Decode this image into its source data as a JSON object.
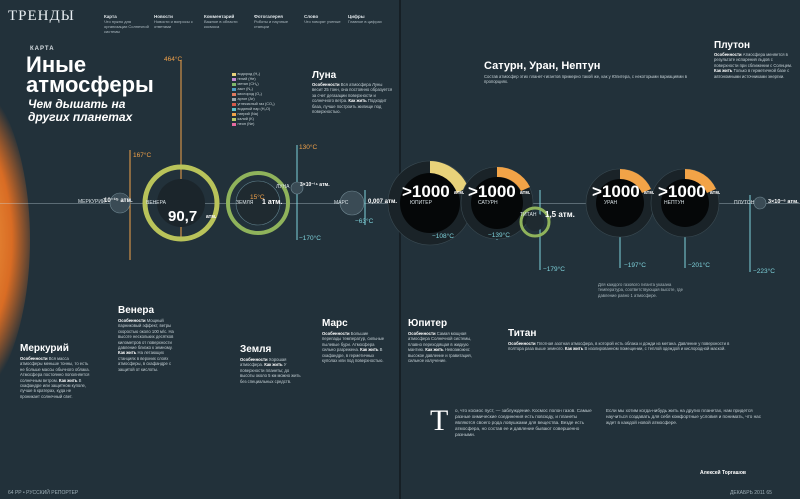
{
  "header": {
    "section": "ТРЕНДЫ",
    "columns": [
      {
        "title": "Карта",
        "text": "Что нужно для организации Солнечной системы"
      },
      {
        "title": "Новости",
        "text": "Новости и вопросы с ответами"
      },
      {
        "title": "Комментарий",
        "text": "Важное в области космоса"
      },
      {
        "title": "Фотогалерея",
        "text": "Роботы и научные станции"
      },
      {
        "title": "Слово",
        "text": "Что говорят ученые"
      },
      {
        "title": "Цифры",
        "text": "Главное в цифрах"
      }
    ]
  },
  "article": {
    "kicker": "КАРТА",
    "title": "Иные атмосферы",
    "subtitle": "Чем дышать на других планетах"
  },
  "planets": [
    {
      "name": "МЕРКУРИЙ",
      "pressure": "10⁻¹⁵ атм.",
      "temp_high": "167°C"
    },
    {
      "name": "ВЕНЕРА",
      "pressure": "90,7",
      "unit": "атм.",
      "temp_high": "464°C"
    },
    {
      "name": "ЗЕМЛЯ",
      "pressure": "1 атм.",
      "temp_mid": "15°C"
    },
    {
      "name": "ЛУНА",
      "pressure": "3×10⁻¹⁵ атм.",
      "temp_high": "130°C",
      "temp_low": "−170°C"
    },
    {
      "name": "МАРС",
      "pressure": "0,007 атм.",
      "temp_low": "−63°C"
    },
    {
      "name": "ЮПИТЕР",
      "pressure": ">1000",
      "unit": "атм.",
      "temp_low": "−108°C"
    },
    {
      "name": "САТУРН",
      "pressure": ">1000",
      "unit": "атм.",
      "temp_low": "−139°C"
    },
    {
      "name": "ТИТАН",
      "pressure": "1,5 атм.",
      "temp_low": "−179°C"
    },
    {
      "name": "УРАН",
      "pressure": ">1000",
      "unit": "атм.",
      "temp_low": "−197°C"
    },
    {
      "name": "НЕПТУН",
      "pressure": ">1000",
      "unit": "атм.",
      "temp_low": "−201°C"
    },
    {
      "name": "ПЛУТОН",
      "pressure": "3×10⁻⁶ атм.",
      "temp_low": "−223°C"
    }
  ],
  "mercury": {
    "name": "Меркурий",
    "desc_label": "Особенности",
    "desc": "Вся масса атмосферы меньше тонны, то есть не больше массы обычного облака. Атмосфера постоянно пополняется солнечным ветром.",
    "how_label": "Как жить",
    "how": "В скафандре или защитном куполе, лучше в кратерах, куда не проникает солнечный свет."
  },
  "venus": {
    "name": "Венера",
    "desc_label": "Особенности",
    "desc": "Мощный парниковый эффект, ветры скоростью около 100 м/с. На высоте нескольких десятков километров от поверхности давление близко к земному.",
    "how_label": "Как жить",
    "how": "На летающих станциях в верхних слоях атмосферы, в скафандре с защитой от кислоты."
  },
  "earth": {
    "name": "Земля",
    "desc_label": "Особенности",
    "desc": "Хорошая атмосфера.",
    "how_label": "Как жить",
    "how": "У поверхности планеты; до высоты около 5 км можно жить без специальных средств."
  },
  "moon": {
    "name": "Луна",
    "desc_label": "Особенности",
    "desc": "Вся атмосфера Луны весит 25 тонн, она постоянно образуется за счет дегазации поверхности и солнечного ветра.",
    "how_label": "Как жить",
    "how": "Подходит база, лучше построить жилище под поверхностью."
  },
  "mars": {
    "name": "Марс",
    "desc_label": "Особенности",
    "desc": "Большие перепады температур, сильные пылевые бури. Атмосфера сильно разрежена.",
    "how_label": "Как жить",
    "how": "В скафандре, в герметичных куполах или под поверхностью."
  },
  "jupiter": {
    "name": "Юпитер",
    "desc_label": "Особенности",
    "desc": "Самая мощная атмосфера Солнечной системы, плавно переходящая в жидкую мантию.",
    "how_label": "Как жить",
    "how": "Невозможно: высокое давление и гравитация, сильное излучение."
  },
  "saturn_group": {
    "name": "Сатурн, Уран, Нептун",
    "desc": "Состав атмосфер этих планет-гигантов примерно такой же, как у Юпитера, с некоторыми вариациями в пропорциях.",
    "note": "Для каждого газового гиганта указана температура, соответствующая высоте, где давление равно 1 атмосфере."
  },
  "titan": {
    "name": "Титан",
    "desc_label": "Особенности",
    "desc": "Плотная азотная атмосфера, в которой есть облака и дожди из метана. Давление у поверхности в полтора раза выше земного.",
    "how_label": "Как жить",
    "how": "В изолированном помещении, с теплой одеждой и кислородной маской."
  },
  "pluto": {
    "name": "Плутон",
    "desc_label": "Особенности",
    "desc": "Атмосфера меняется в результате испарения льдов с поверхности при сближении с Солнцем.",
    "how_label": "Как жить",
    "how": "Только в герметичной базе с автономными источниками энергии."
  },
  "gases": [
    {
      "name": "водород (H₂)",
      "color": "#e8d27a"
    },
    {
      "name": "гелий (He)",
      "color": "#c48ad3"
    },
    {
      "name": "метан (CH₄)",
      "color": "#7fb86a"
    },
    {
      "name": "азот (N₂)",
      "color": "#4f9ec4"
    },
    {
      "name": "кислород (O₂)",
      "color": "#e07a5f"
    },
    {
      "name": "аргон (Ar)",
      "color": "#9aa7ad"
    },
    {
      "name": "углекислый газ (CO₂)",
      "color": "#d65a4a"
    },
    {
      "name": "водяной пар (H₂O)",
      "color": "#5fc1c9"
    },
    {
      "name": "натрий (Na)",
      "color": "#f2a347"
    },
    {
      "name": "калий (K)",
      "color": "#b7c96b"
    },
    {
      "name": "неон (Ne)",
      "color": "#e86aa0"
    }
  ],
  "essay": {
    "dropcap": "Т",
    "col1": "о, что космос пуст, — заблуждение. Космос полон газов. Самые разные химические соединения есть повсюду, и планеты являются своего рода ловушками для вещества. Везде есть атмосфера, но состав ее и давление бывают совершенно разными.",
    "col2": "Если мы хотим когда-нибудь жить на других планетах, нам придется научиться создавать для себя комфортные условия и понимать, что нас ждет в каждой новой атмосфере.",
    "author": "Алексей Торгашов"
  },
  "footer": {
    "left": "64 РР • РУССКИЙ РЕПОРТЕР",
    "right": "ДЕКАБРЬ 2011 65"
  }
}
